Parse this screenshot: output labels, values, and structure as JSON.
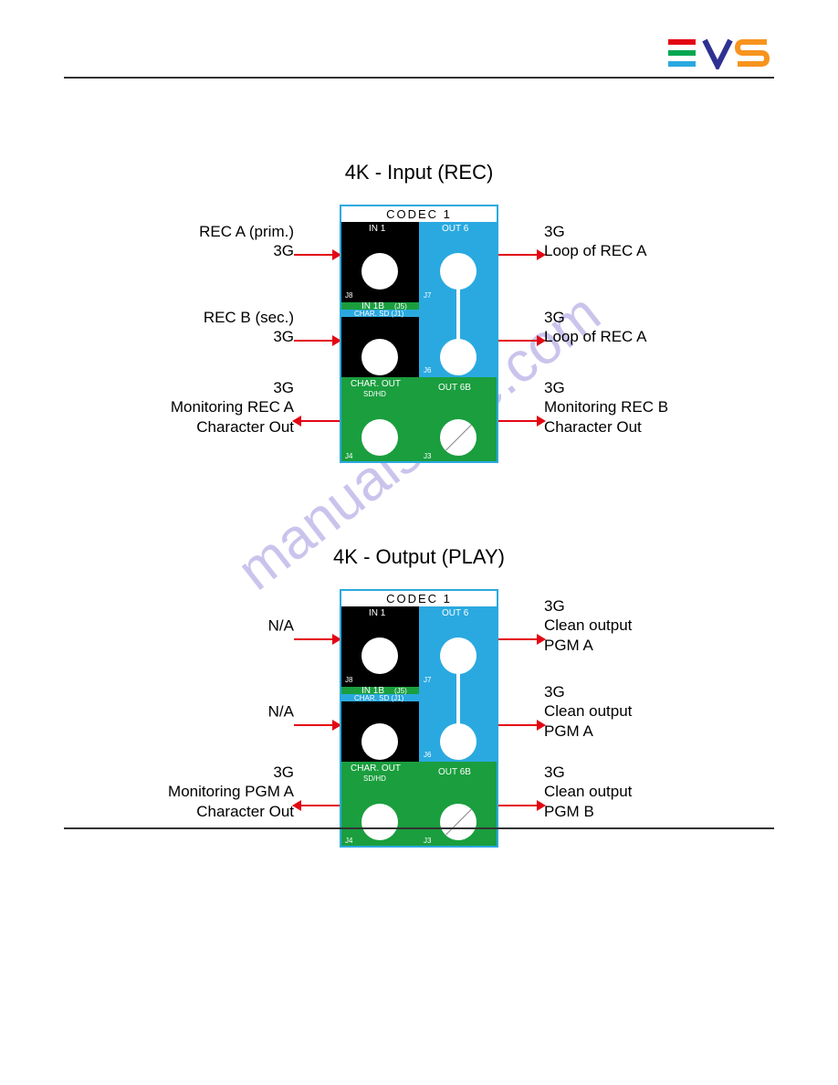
{
  "logo": {
    "text": "EVS"
  },
  "watermark": "manualshive.com",
  "colors": {
    "blue": "#2aa9e0",
    "green": "#1a9e3e",
    "black": "#000000",
    "arrow": "#e30613",
    "rule": "#333333",
    "watermark": "#6a5acd"
  },
  "diagrams": [
    {
      "title": "4K - Input (REC)",
      "codec_title": "CODEC 1",
      "panel_labels": {
        "in1": "IN 1",
        "out6": "OUT 6",
        "in1b": "IN 1B",
        "in1b_sub": "(J5)",
        "char_sd": "CHAR. SD (J1)",
        "char_out": "CHAR. OUT",
        "char_out_sub": "SD/HD",
        "out6b": "OUT 6B",
        "j8": "J8",
        "j7": "J7",
        "j6": "J6",
        "j4": "J4",
        "j3": "J3"
      },
      "left": [
        {
          "l1": "REC A (prim.)",
          "l2": "3G"
        },
        {
          "l1": "REC B (sec.)",
          "l2": "3G"
        },
        {
          "l1": "3G",
          "l2": "Monitoring REC A",
          "l3": "Character Out"
        }
      ],
      "right": [
        {
          "l1": "3G",
          "l2": "Loop of REC A"
        },
        {
          "l1": "3G",
          "l2": "Loop of REC A"
        },
        {
          "l1": "3G",
          "l2": "Monitoring REC B",
          "l3": "Character Out"
        }
      ],
      "left_arrow_dirs": [
        "right",
        "right",
        "left"
      ],
      "right_arrow_dirs": [
        "right",
        "right",
        "right"
      ]
    },
    {
      "title": "4K - Output (PLAY)",
      "codec_title": "CODEC 1",
      "panel_labels": {
        "in1": "IN 1",
        "out6": "OUT 6",
        "in1b": "IN 1B",
        "in1b_sub": "(J5)",
        "char_sd": "CHAR. SD (J1)",
        "char_out": "CHAR. OUT",
        "char_out_sub": "SD/HD",
        "out6b": "OUT 6B",
        "j8": "J8",
        "j7": "J7",
        "j6": "J6",
        "j4": "J4",
        "j3": "J3"
      },
      "left": [
        {
          "l1": "N/A",
          "l2": ""
        },
        {
          "l1": "N/A",
          "l2": ""
        },
        {
          "l1": "3G",
          "l2": "Monitoring PGM A",
          "l3": "Character Out"
        }
      ],
      "right": [
        {
          "l1": "3G",
          "l2": "Clean output",
          "l3": "PGM A"
        },
        {
          "l1": "3G",
          "l2": "Clean output",
          "l3": "PGM A"
        },
        {
          "l1": "3G",
          "l2": "Clean output",
          "l3": "PGM B"
        }
      ],
      "left_arrow_dirs": [
        "right",
        "right",
        "left"
      ],
      "right_arrow_dirs": [
        "right",
        "right",
        "right"
      ]
    }
  ]
}
